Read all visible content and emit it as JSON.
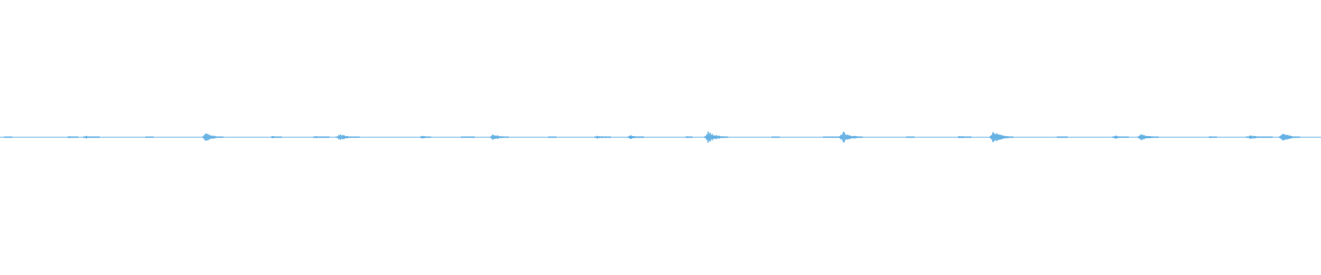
{
  "chart_data": {
    "type": "area",
    "description_kind": "audio-waveform",
    "color": "#5dade2",
    "amplitude_range": [
      -1,
      1
    ],
    "time_range": [
      0,
      100
    ],
    "bursts": [
      {
        "t": 0.3,
        "peak": 0.1,
        "len": 0.6
      },
      {
        "t": 5.1,
        "peak": 0.15,
        "len": 0.8
      },
      {
        "t": 6.3,
        "peak": 0.2,
        "len": 1.2
      },
      {
        "t": 11.0,
        "peak": 0.1,
        "len": 0.6
      },
      {
        "t": 15.3,
        "peak": 0.6,
        "len": 1.6
      },
      {
        "t": 20.5,
        "peak": 0.15,
        "len": 0.8
      },
      {
        "t": 23.7,
        "peak": 0.15,
        "len": 1.2
      },
      {
        "t": 25.4,
        "peak": 0.4,
        "len": 1.8
      },
      {
        "t": 31.8,
        "peak": 0.25,
        "len": 0.8
      },
      {
        "t": 34.9,
        "peak": 0.1,
        "len": 1.0
      },
      {
        "t": 37.1,
        "peak": 0.5,
        "len": 1.4
      },
      {
        "t": 41.5,
        "peak": 0.1,
        "len": 0.6
      },
      {
        "t": 45.0,
        "peak": 0.25,
        "len": 1.2
      },
      {
        "t": 47.5,
        "peak": 0.25,
        "len": 1.2
      },
      {
        "t": 51.9,
        "peak": 0.15,
        "len": 0.5
      },
      {
        "t": 53.3,
        "peak": 0.75,
        "len": 1.8
      },
      {
        "t": 58.4,
        "peak": 0.1,
        "len": 0.6
      },
      {
        "t": 62.3,
        "peak": 0.1,
        "len": 1.2
      },
      {
        "t": 63.5,
        "peak": 0.75,
        "len": 1.8
      },
      {
        "t": 68.6,
        "peak": 0.08,
        "len": 0.6
      },
      {
        "t": 72.5,
        "peak": 0.2,
        "len": 1.0
      },
      {
        "t": 74.9,
        "peak": 0.75,
        "len": 1.8
      },
      {
        "t": 80.0,
        "peak": 0.1,
        "len": 0.8
      },
      {
        "t": 84.2,
        "peak": 0.25,
        "len": 1.2
      },
      {
        "t": 86.1,
        "peak": 0.5,
        "len": 1.6
      },
      {
        "t": 91.5,
        "peak": 0.15,
        "len": 0.6
      },
      {
        "t": 94.3,
        "peak": 0.25,
        "len": 2.0
      },
      {
        "t": 96.8,
        "peak": 0.6,
        "len": 1.6
      }
    ]
  }
}
